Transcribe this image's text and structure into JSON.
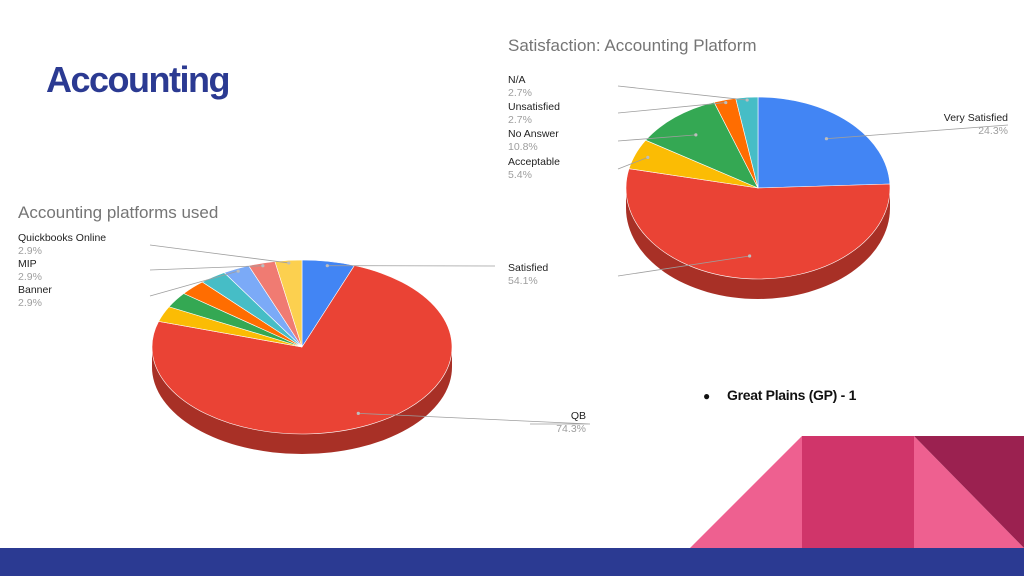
{
  "slide": {
    "title": "Accounting"
  },
  "bullet": {
    "marker": "●",
    "text": "Great Plains (GP) - 1"
  },
  "colors": {
    "title": "#2b3a92",
    "bottom_bar": "#2b3a92",
    "deco_light_pink": "#ee6090",
    "deco_magenta": "#d0356a",
    "deco_dark": "#9b2150"
  },
  "chart_data": [
    {
      "type": "pie",
      "style": "3d",
      "title": "Accounting platforms used",
      "slices": [
        {
          "label": "",
          "value": 5.7,
          "color": "#4285f4"
        },
        {
          "label": "QB",
          "value": 74.3,
          "color": "#ea4335"
        },
        {
          "label": "",
          "value": 2.9,
          "color": "#fbbc04"
        },
        {
          "label": "",
          "value": 2.9,
          "color": "#34a853"
        },
        {
          "label": "",
          "value": 2.9,
          "color": "#ff6d01"
        },
        {
          "label": "",
          "value": 2.9,
          "color": "#46bdc6"
        },
        {
          "label": "Banner",
          "value": 2.9,
          "color": "#7baaf7"
        },
        {
          "label": "MIP",
          "value": 2.9,
          "color": "#f07b72"
        },
        {
          "label": "Quickbooks Online",
          "value": 2.9,
          "color": "#fcd04f"
        }
      ],
      "labels": [
        {
          "name": "Quickbooks Online",
          "pct": "2.9%"
        },
        {
          "name": "MIP",
          "pct": "2.9%"
        },
        {
          "name": "Banner",
          "pct": "2.9%"
        },
        {
          "name": "QB",
          "pct": "74.3%"
        }
      ]
    },
    {
      "type": "pie",
      "style": "3d",
      "title": "Satisfaction: Accounting Platform",
      "slices": [
        {
          "label": "Very Satisfied",
          "value": 24.3,
          "color": "#4285f4"
        },
        {
          "label": "Satisfied",
          "value": 54.1,
          "color": "#ea4335"
        },
        {
          "label": "Acceptable",
          "value": 5.4,
          "color": "#fbbc04"
        },
        {
          "label": "No Answer",
          "value": 10.8,
          "color": "#34a853"
        },
        {
          "label": "Unsatisfied",
          "value": 2.7,
          "color": "#ff6d01"
        },
        {
          "label": "N/A",
          "value": 2.7,
          "color": "#46bdc6"
        }
      ],
      "labels": [
        {
          "name": "N/A",
          "pct": "2.7%"
        },
        {
          "name": "Unsatisfied",
          "pct": "2.7%"
        },
        {
          "name": "No Answer",
          "pct": "10.8%"
        },
        {
          "name": "Acceptable",
          "pct": "5.4%"
        },
        {
          "name": "Very Satisfied",
          "pct": "24.3%"
        },
        {
          "name": "Satisfied",
          "pct": "54.1%"
        }
      ]
    }
  ]
}
